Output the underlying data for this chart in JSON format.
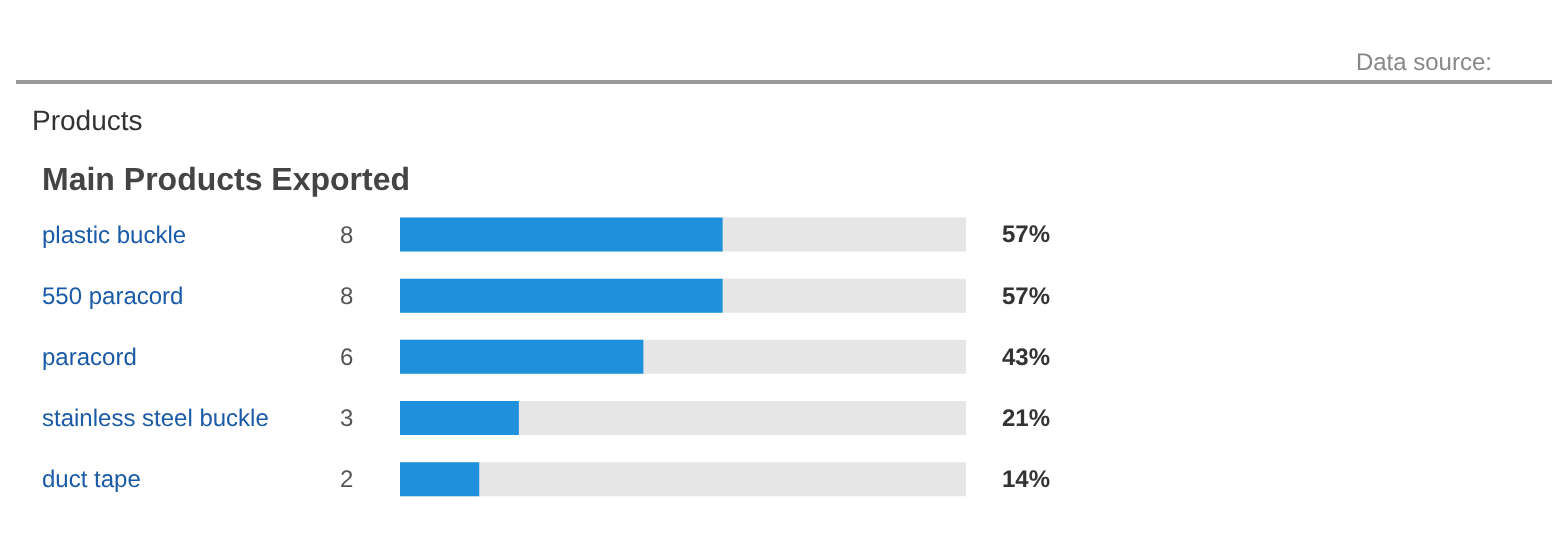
{
  "chart_data": {
    "type": "bar",
    "orientation": "horizontal",
    "subtitle": "Products",
    "title": "Main Products Exported",
    "categories": [
      "plastic buckle",
      "550 paracord",
      "paracord",
      "stainless steel buckle",
      "duct tape"
    ],
    "values": [
      57,
      57,
      43,
      21,
      14
    ],
    "color": "#1e90dc",
    "value_labels": [
      "57%",
      "57%",
      "43%",
      "21%",
      "14%"
    ],
    "xlim": [
      0,
      100
    ],
    "tick_labels": false,
    "annotations": [
      "Data source:",
      "8",
      "8",
      "6",
      "3",
      "2"
    ]
  }
}
